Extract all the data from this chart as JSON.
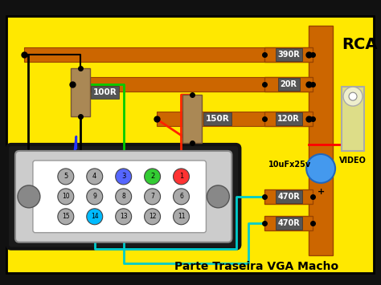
{
  "bg_color": "#FFE800",
  "title": "Parte Traseira VGA Macho",
  "rca_label": "RCA",
  "video_label": "VIDEO",
  "orange_rail": "#CC6600",
  "orange_rail_edge": "#994400",
  "res_bg": "#888888",
  "res_text": "white",
  "cap_color": "#4499FF",
  "cap_label": "10uFx25v"
}
